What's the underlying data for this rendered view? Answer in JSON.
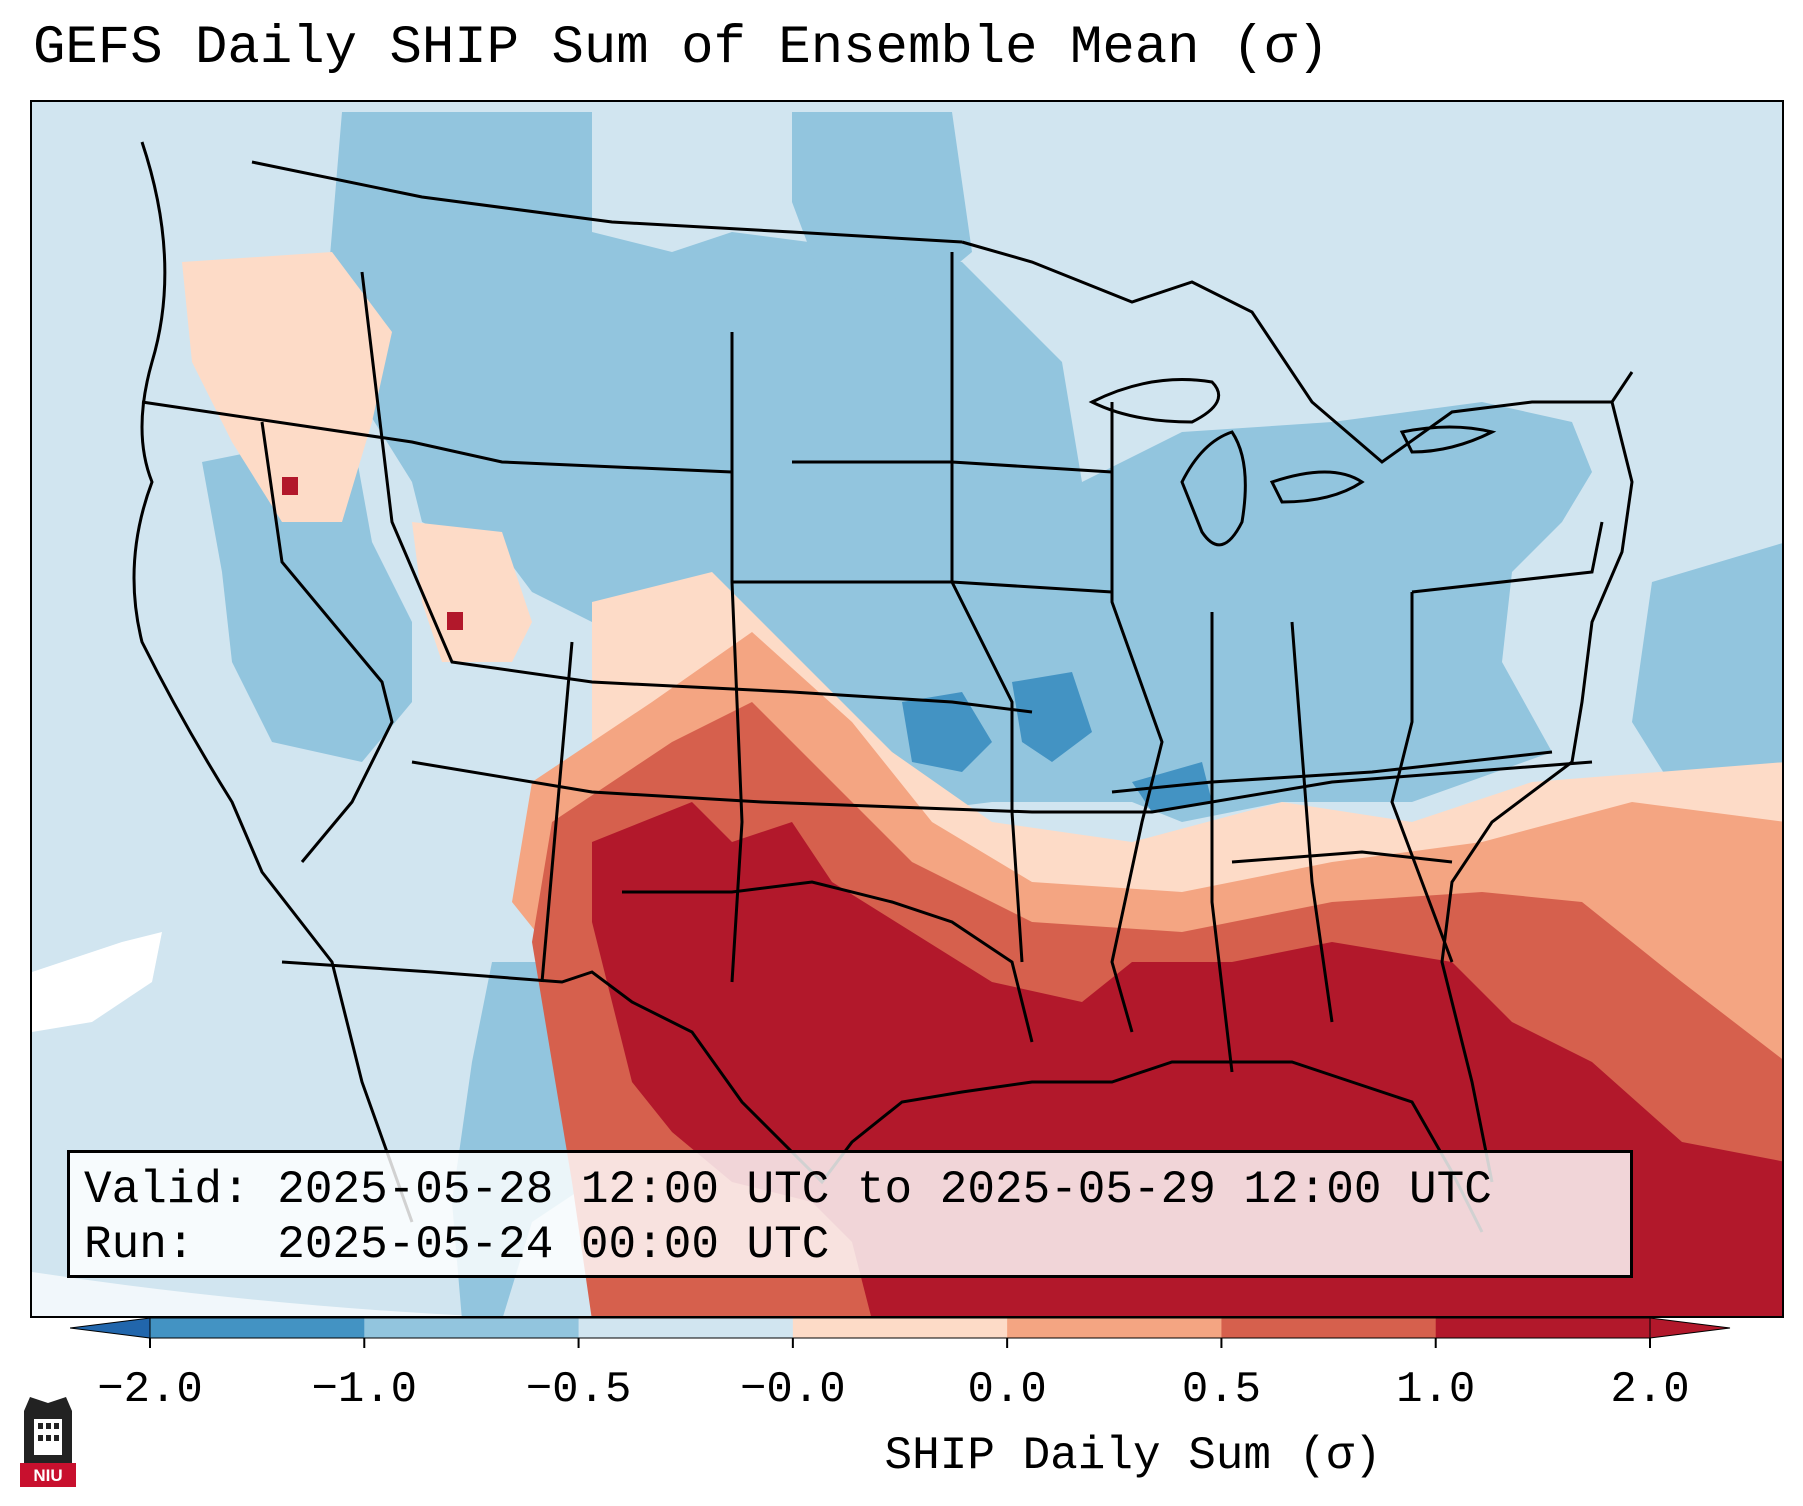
{
  "title": "GEFS Daily SHIP Sum of Ensemble Mean (σ)",
  "info": {
    "valid_label": "Valid:",
    "valid_value": "2025-05-28 12:00 UTC to 2025-05-29 12:00 UTC",
    "run_label": "Run:",
    "run_value": "2025-05-24 00:00 UTC"
  },
  "colorbar": {
    "label": "SHIP Daily Sum (σ)",
    "ticks": [
      "−2.0",
      "−1.0",
      "−0.5",
      "−0.0",
      "0.0",
      "0.5",
      "1.0",
      "2.0"
    ],
    "colors": [
      "#4393c3",
      "#92c5de",
      "#d1e5f0",
      "#ffffff",
      "#fddbc7",
      "#f4a582",
      "#d6604d",
      "#b2182b"
    ],
    "extend_low_color": "#2166ac",
    "extend_high_color": "#b2182b"
  },
  "map": {
    "background_color": "#d1e5f0",
    "region": "Contiguous United States, southern Canada, northern Mexico, Gulf of Mexico"
  },
  "logo": {
    "text": "NIU",
    "icon": "niu-logo-icon"
  }
}
